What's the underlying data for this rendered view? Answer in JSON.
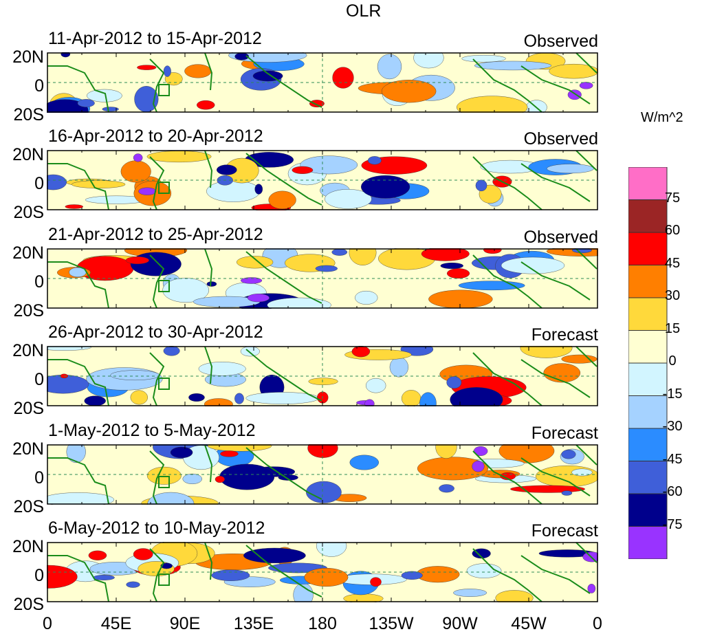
{
  "figure": {
    "title": "OLR",
    "units": "W/m^2"
  },
  "panels": [
    {
      "period": "11-Apr-2012 to 15-Apr-2012",
      "type": "Observed"
    },
    {
      "period": "16-Apr-2012 to 20-Apr-2012",
      "type": "Observed"
    },
    {
      "period": "21-Apr-2012 to 25-Apr-2012",
      "type": "Observed"
    },
    {
      "period": "26-Apr-2012 to 30-Apr-2012",
      "type": "Forecast"
    },
    {
      "period": "1-May-2012 to 5-May-2012",
      "type": "Forecast"
    },
    {
      "period": "6-May-2012 to 10-May-2012",
      "type": "Forecast"
    }
  ],
  "y_ticks": [
    "20N",
    "0",
    "20S"
  ],
  "x_ticks": [
    "0",
    "45E",
    "90E",
    "135E",
    "180",
    "135W",
    "90W",
    "45W",
    "0"
  ],
  "colorbar": {
    "labels": [
      "75",
      "60",
      "45",
      "30",
      "15",
      "0",
      "-15",
      "-30",
      "-45",
      "-60",
      "-75"
    ],
    "colors": [
      "#ff6ec7",
      "#9b2525",
      "#ff0000",
      "#ff7f00",
      "#ffd93b",
      "#ffffd2",
      "#d2f5ff",
      "#a5d2ff",
      "#2b8cff",
      "#3f5fd9",
      "#00008c",
      "#9933ff"
    ]
  },
  "palette": {
    "land_outline": "#1a8c1a",
    "equator_line": "#2e8b57"
  }
}
